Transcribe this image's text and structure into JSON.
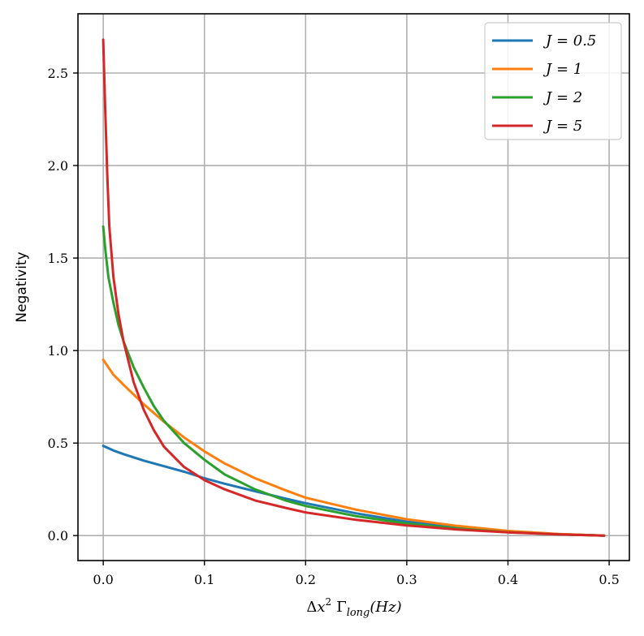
{
  "chart_data": {
    "type": "line",
    "title": "",
    "xlabel": "Δx² Γlong(Hz)",
    "xlabel_parts": {
      "delta": "Δ",
      "var": "x",
      "sup": "2",
      "gamma": "Γ",
      "sub": "long",
      "unit": "(Hz)"
    },
    "ylabel": "Negativity",
    "xlim": [
      -0.025,
      0.52
    ],
    "ylim": [
      -0.135,
      2.82
    ],
    "xticks": [
      0.0,
      0.1,
      0.2,
      0.3,
      0.4,
      0.5
    ],
    "xtick_labels": [
      "0.0",
      "0.1",
      "0.2",
      "0.3",
      "0.4",
      "0.5"
    ],
    "yticks": [
      0.0,
      0.5,
      1.0,
      1.5,
      2.0,
      2.5
    ],
    "ytick_labels": [
      "0.0",
      "0.5",
      "1.0",
      "1.5",
      "2.0",
      "2.5"
    ],
    "grid": true,
    "legend_position": "top-right",
    "series": [
      {
        "name": "J = 0.5",
        "color": "#1f77b4",
        "x": [
          0.0,
          0.01,
          0.02,
          0.04,
          0.06,
          0.08,
          0.1,
          0.12,
          0.15,
          0.18,
          0.2,
          0.25,
          0.3,
          0.35,
          0.4,
          0.45,
          0.495
        ],
        "y": [
          0.485,
          0.46,
          0.44,
          0.405,
          0.375,
          0.345,
          0.31,
          0.28,
          0.24,
          0.2,
          0.175,
          0.12,
          0.075,
          0.045,
          0.022,
          0.008,
          0.0
        ]
      },
      {
        "name": "J = 1",
        "color": "#ff7f0e",
        "x": [
          0.0,
          0.01,
          0.02,
          0.04,
          0.06,
          0.08,
          0.1,
          0.12,
          0.15,
          0.18,
          0.2,
          0.25,
          0.3,
          0.35,
          0.4,
          0.45,
          0.495
        ],
        "y": [
          0.95,
          0.87,
          0.815,
          0.71,
          0.615,
          0.53,
          0.455,
          0.39,
          0.31,
          0.245,
          0.205,
          0.14,
          0.088,
          0.052,
          0.025,
          0.009,
          0.0
        ]
      },
      {
        "name": "J = 2",
        "color": "#2ca02c",
        "x": [
          0.0,
          0.002,
          0.005,
          0.01,
          0.015,
          0.02,
          0.03,
          0.04,
          0.05,
          0.06,
          0.08,
          0.1,
          0.12,
          0.15,
          0.18,
          0.2,
          0.25,
          0.3,
          0.35,
          0.4,
          0.45,
          0.495
        ],
        "y": [
          1.67,
          1.55,
          1.4,
          1.26,
          1.14,
          1.05,
          0.91,
          0.8,
          0.7,
          0.62,
          0.5,
          0.41,
          0.33,
          0.25,
          0.19,
          0.16,
          0.105,
          0.065,
          0.038,
          0.018,
          0.006,
          0.0
        ]
      },
      {
        "name": "J = 5",
        "color": "#d62728",
        "x": [
          0.0,
          0.002,
          0.004,
          0.006,
          0.01,
          0.015,
          0.02,
          0.03,
          0.04,
          0.05,
          0.06,
          0.08,
          0.1,
          0.12,
          0.15,
          0.18,
          0.2,
          0.25,
          0.3,
          0.35,
          0.4,
          0.45,
          0.495
        ],
        "y": [
          2.68,
          2.3,
          1.95,
          1.67,
          1.4,
          1.2,
          1.05,
          0.83,
          0.68,
          0.57,
          0.48,
          0.37,
          0.3,
          0.25,
          0.19,
          0.15,
          0.125,
          0.085,
          0.055,
          0.033,
          0.017,
          0.006,
          0.0
        ]
      }
    ]
  }
}
